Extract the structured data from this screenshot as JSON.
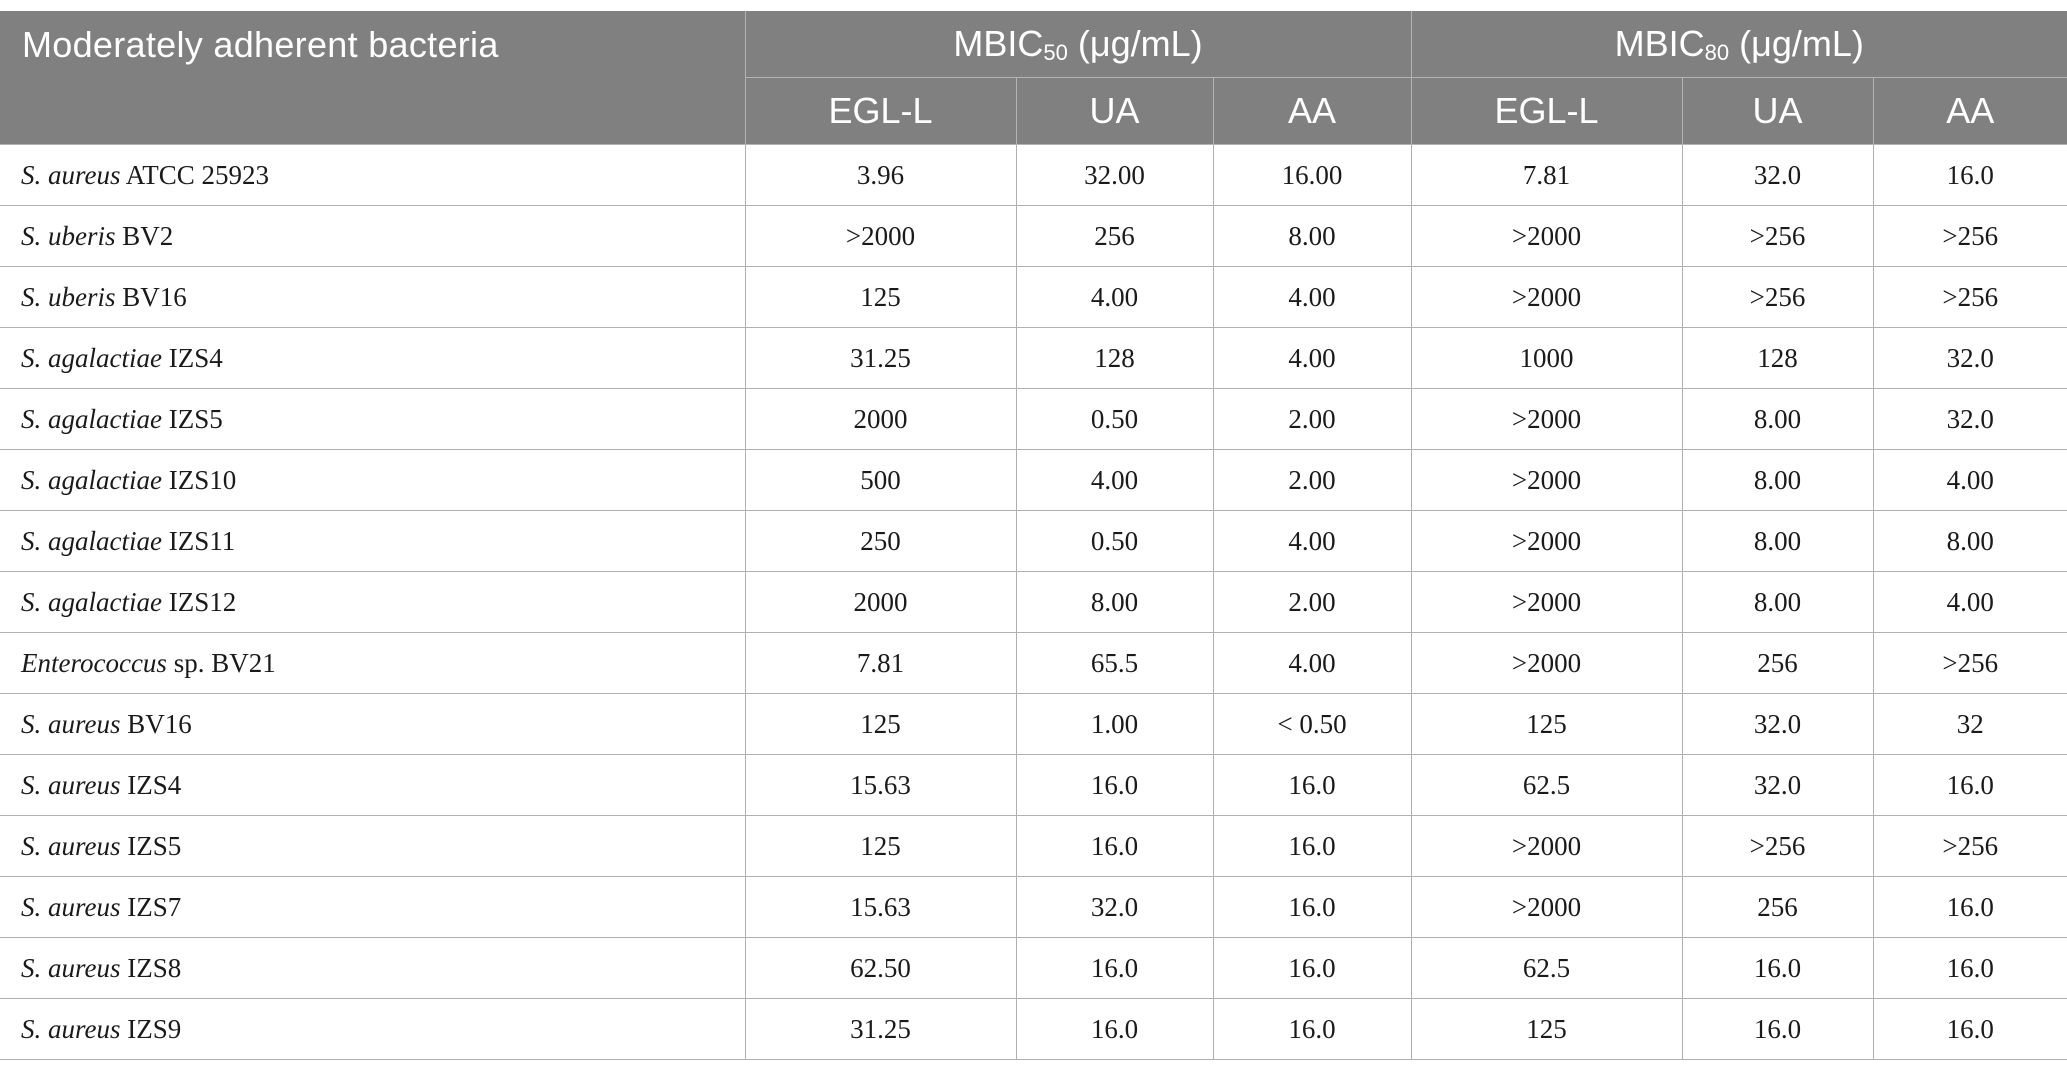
{
  "header": {
    "row_label": "Moderately adherent bacteria",
    "groups": [
      {
        "base": "MBIC",
        "sub": "50",
        "unit": " (μg/mL)"
      },
      {
        "base": "MBIC",
        "sub": "80",
        "unit": " (μg/mL)"
      }
    ],
    "subcolumns": [
      "EGL-L",
      "UA",
      "AA",
      "EGL-L",
      "UA",
      "AA"
    ]
  },
  "rows": [
    {
      "species": "S. aureus",
      "strain": " ATCC 25923",
      "values": [
        "3.96",
        "32.00",
        "16.00",
        "7.81",
        "32.0",
        "16.0"
      ]
    },
    {
      "species": "S. uberis",
      "strain": " BV2",
      "values": [
        ">2000",
        "256",
        "8.00",
        ">2000",
        ">256",
        ">256"
      ]
    },
    {
      "species": "S. uberis",
      "strain": " BV16",
      "values": [
        "125",
        "4.00",
        "4.00",
        ">2000",
        ">256",
        ">256"
      ]
    },
    {
      "species": "S. agalactiae",
      "strain": " IZS4",
      "values": [
        "31.25",
        "128",
        "4.00",
        "1000",
        "128",
        "32.0"
      ]
    },
    {
      "species": "S. agalactiae",
      "strain": " IZS5",
      "values": [
        "2000",
        "0.50",
        "2.00",
        ">2000",
        "8.00",
        "32.0"
      ]
    },
    {
      "species": "S. agalactiae",
      "strain": " IZS10",
      "values": [
        "500",
        "4.00",
        "2.00",
        ">2000",
        "8.00",
        "4.00"
      ]
    },
    {
      "species": "S. agalactiae",
      "strain": " IZS11",
      "values": [
        "250",
        "0.50",
        "4.00",
        ">2000",
        "8.00",
        "8.00"
      ]
    },
    {
      "species": "S. agalactiae",
      "strain": " IZS12",
      "values": [
        "2000",
        "8.00",
        "2.00",
        ">2000",
        "8.00",
        "4.00"
      ]
    },
    {
      "species": "Enterococcus",
      "strain": " sp. BV21",
      "values": [
        "7.81",
        "65.5",
        "4.00",
        ">2000",
        "256",
        ">256"
      ]
    },
    {
      "species": "S. aureus",
      "strain": " BV16",
      "values": [
        "125",
        "1.00",
        "< 0.50",
        "125",
        "32.0",
        "32"
      ]
    },
    {
      "species": "S. aureus",
      "strain": " IZS4",
      "values": [
        "15.63",
        "16.0",
        "16.0",
        "62.5",
        "32.0",
        "16.0"
      ]
    },
    {
      "species": "S. aureus",
      "strain": " IZS5",
      "values": [
        "125",
        "16.0",
        "16.0",
        ">2000",
        ">256",
        ">256"
      ]
    },
    {
      "species": "S. aureus",
      "strain": " IZS7",
      "values": [
        "15.63",
        "32.0",
        "16.0",
        ">2000",
        "256",
        "16.0"
      ]
    },
    {
      "species": "S. aureus",
      "strain": " IZS8",
      "values": [
        "62.50",
        "16.0",
        "16.0",
        "62.5",
        "16.0",
        "16.0"
      ]
    },
    {
      "species": "S. aureus",
      "strain": " IZS9",
      "values": [
        "31.25",
        "16.0",
        "16.0",
        "125",
        "16.0",
        "16.0"
      ]
    }
  ]
}
